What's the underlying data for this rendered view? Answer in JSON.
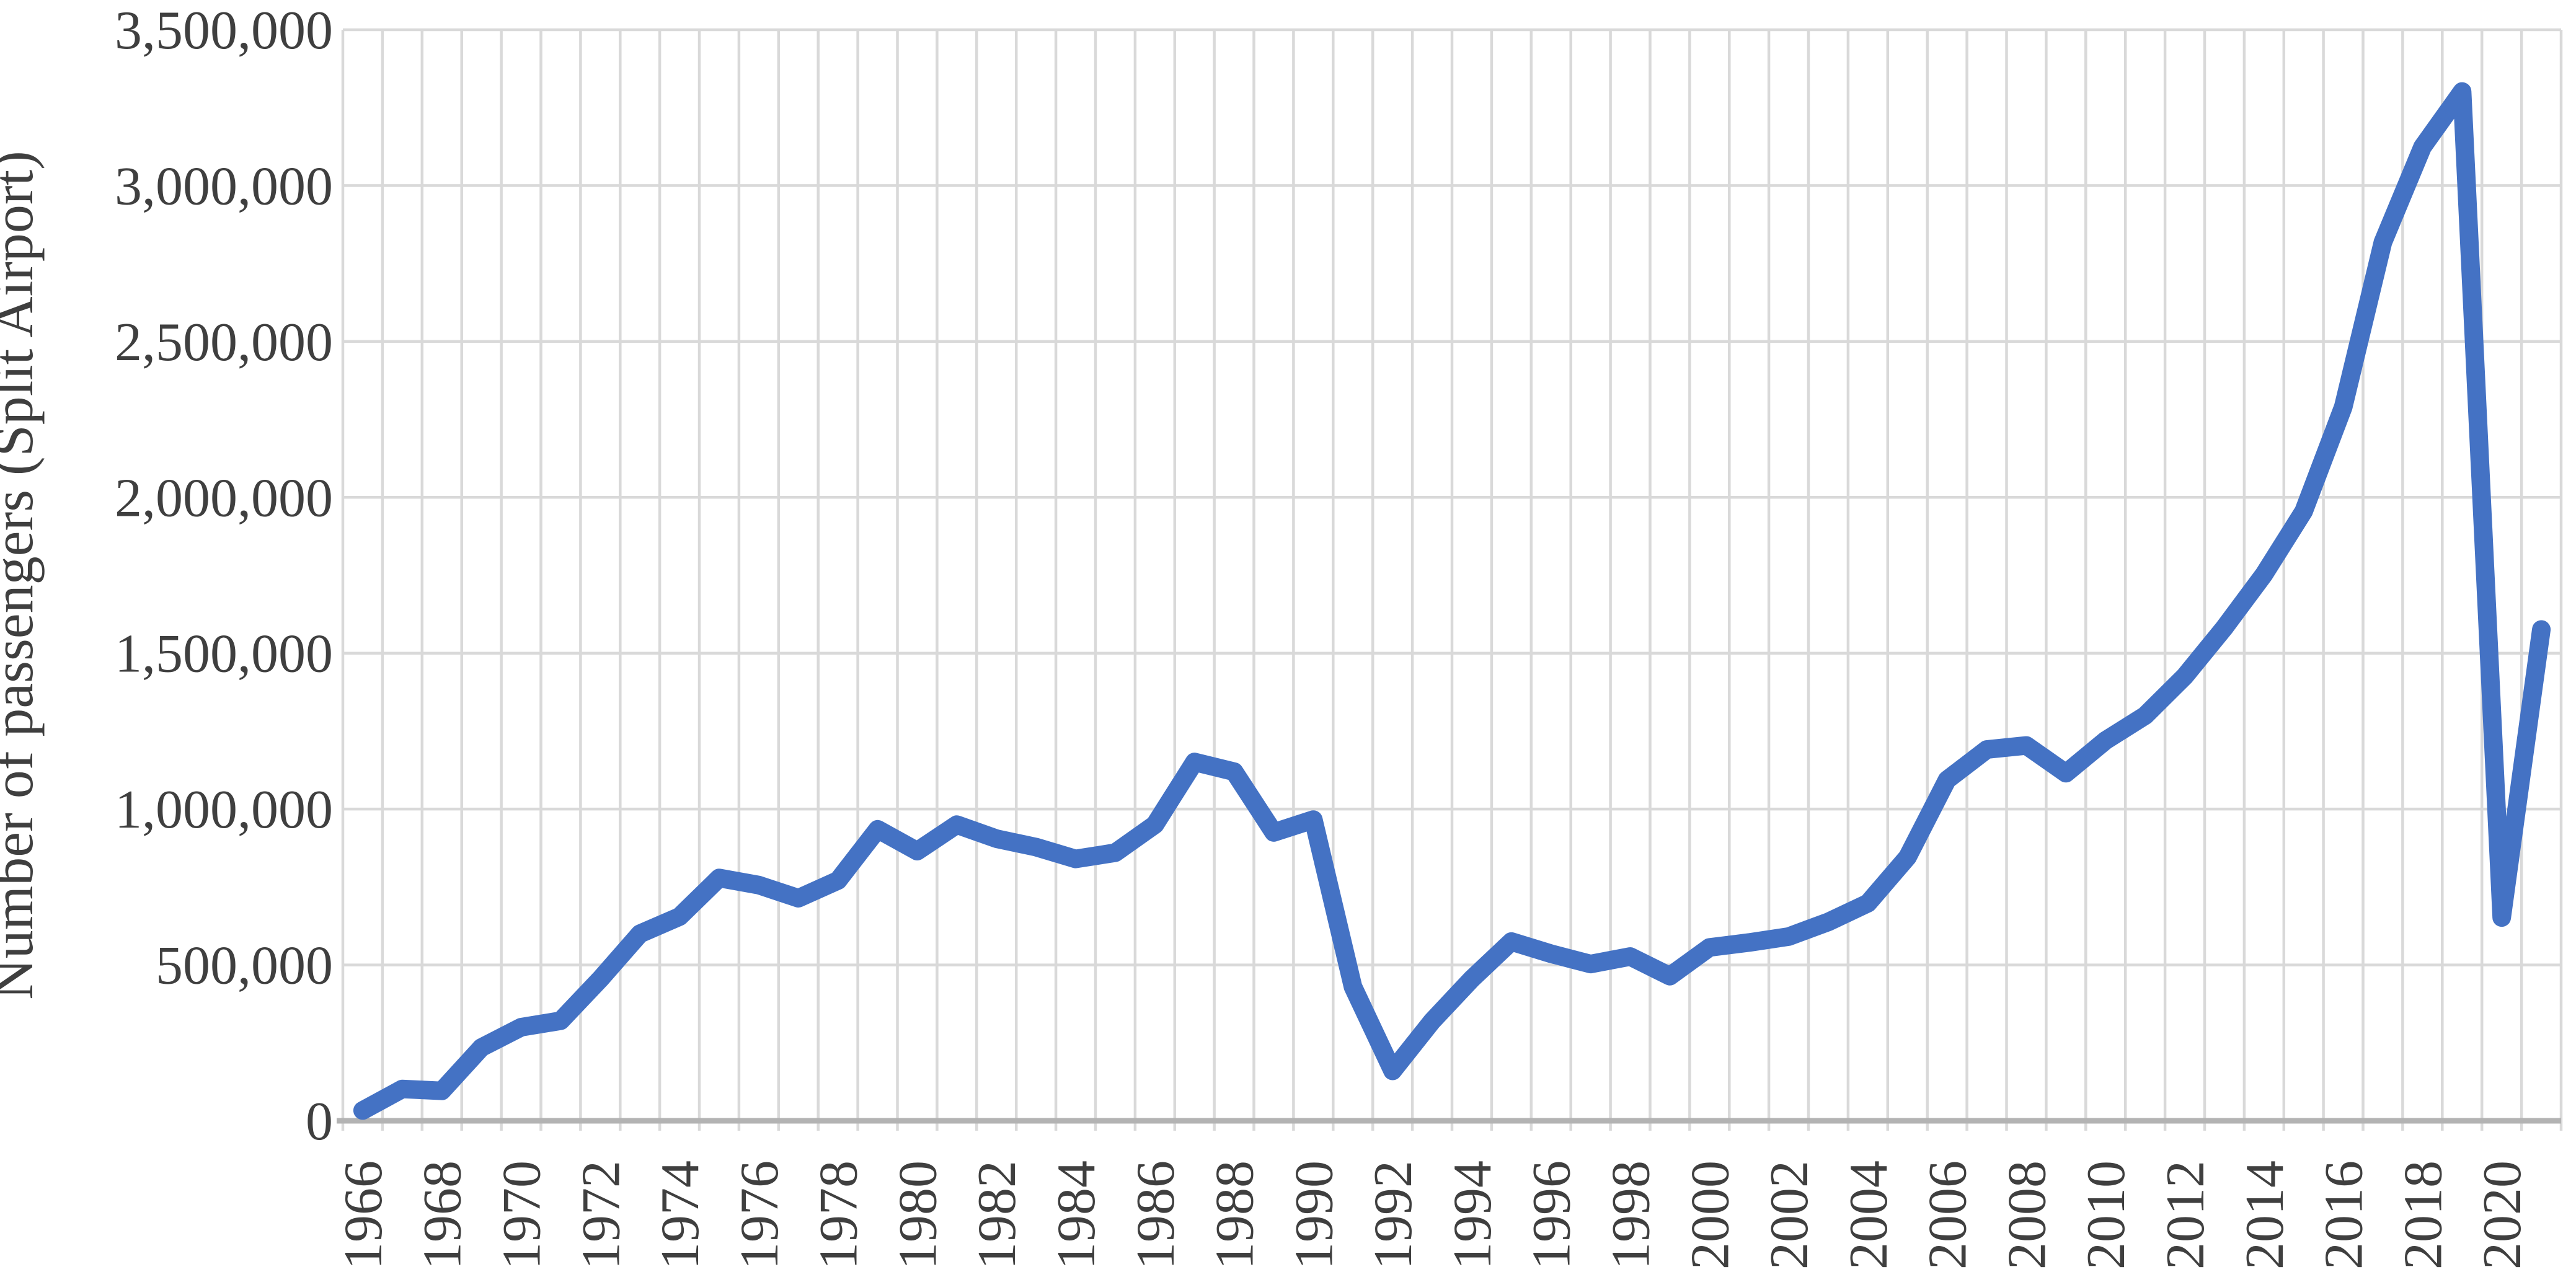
{
  "chart_data": {
    "type": "line",
    "title": "",
    "xlabel": "",
    "ylabel": "Number of passengers (Split Airport)",
    "x": [
      1966,
      1967,
      1968,
      1969,
      1970,
      1971,
      1972,
      1973,
      1974,
      1975,
      1976,
      1977,
      1978,
      1979,
      1980,
      1981,
      1982,
      1983,
      1984,
      1985,
      1986,
      1987,
      1988,
      1989,
      1990,
      1991,
      1992,
      1993,
      1994,
      1995,
      1996,
      1997,
      1998,
      1999,
      2000,
      2001,
      2002,
      2003,
      2004,
      2005,
      2006,
      2007,
      2008,
      2009,
      2010,
      2011,
      2012,
      2013,
      2014,
      2015,
      2016,
      2017,
      2018,
      2019,
      2020,
      2021
    ],
    "series": [
      {
        "name": "Number of passengers (Split Airport)",
        "values": [
          33000,
          102000,
          96000,
          235000,
          300000,
          321000,
          455000,
          600000,
          655000,
          779000,
          756000,
          714000,
          771000,
          935000,
          865000,
          950000,
          905000,
          878000,
          840000,
          860000,
          950000,
          1151000,
          1120000,
          925000,
          966000,
          430000,
          160000,
          320000,
          455000,
          575000,
          536000,
          503000,
          527000,
          464000,
          556000,
          572000,
          591000,
          638000,
          698000,
          846000,
          1094000,
          1191000,
          1204000,
          1115000,
          1220000,
          1300000,
          1426000,
          1582000,
          1753000,
          1955000,
          2290000,
          2818000,
          3124000,
          3302000,
          652000,
          1576000
        ]
      }
    ],
    "ylim": [
      0,
      3500000
    ],
    "ytick_step": 500000,
    "ytick_labels": [
      "0",
      "500,000",
      "1,000,000",
      "1,500,000",
      "2,000,000",
      "2,500,000",
      "3,000,000",
      "3,500,000"
    ],
    "xtick_every": 2,
    "xtick_labels": [
      "1966",
      "1968",
      "1970",
      "1972",
      "1974",
      "1976",
      "1978",
      "1980",
      "1982",
      "1984",
      "1986",
      "1988",
      "1990",
      "1992",
      "1994",
      "1996",
      "1998",
      "2000",
      "2002",
      "2004",
      "2006",
      "2008",
      "2010",
      "2012",
      "2014",
      "2016",
      "2018",
      "2020"
    ],
    "grid": "both",
    "legend": "none",
    "line_color": "#4472C4",
    "gridline_color": "#D9D9D9",
    "axis_line_color": "#B3B3B3",
    "text_color": "#3F3F3F"
  }
}
